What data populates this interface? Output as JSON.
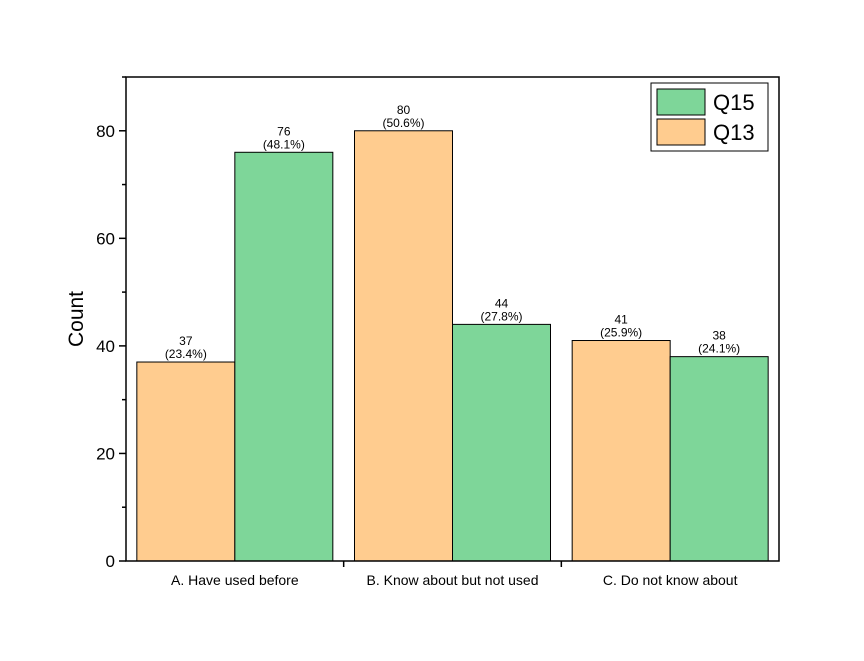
{
  "chart_data": {
    "type": "bar",
    "categories": [
      "A. Have used before",
      "B. Know about but not used",
      "C. Do not know about"
    ],
    "series": [
      {
        "name": "Q13",
        "color": "#FFCC8F",
        "values": [
          37,
          80,
          41
        ],
        "labels": [
          "(23.4%)",
          "(50.6%)",
          "(25.9%)"
        ]
      },
      {
        "name": "Q15",
        "color": "#7ED699",
        "values": [
          76,
          44,
          38
        ],
        "labels": [
          "(48.1%)",
          "(27.8%)",
          "(24.1%)"
        ]
      }
    ],
    "ylabel": "Count",
    "xlabel": "",
    "ylim": [
      0,
      90
    ],
    "yticks": [
      0,
      20,
      40,
      60,
      80
    ],
    "legend": {
      "position": "top-right",
      "order": [
        "Q15",
        "Q13"
      ]
    },
    "grid": false
  }
}
